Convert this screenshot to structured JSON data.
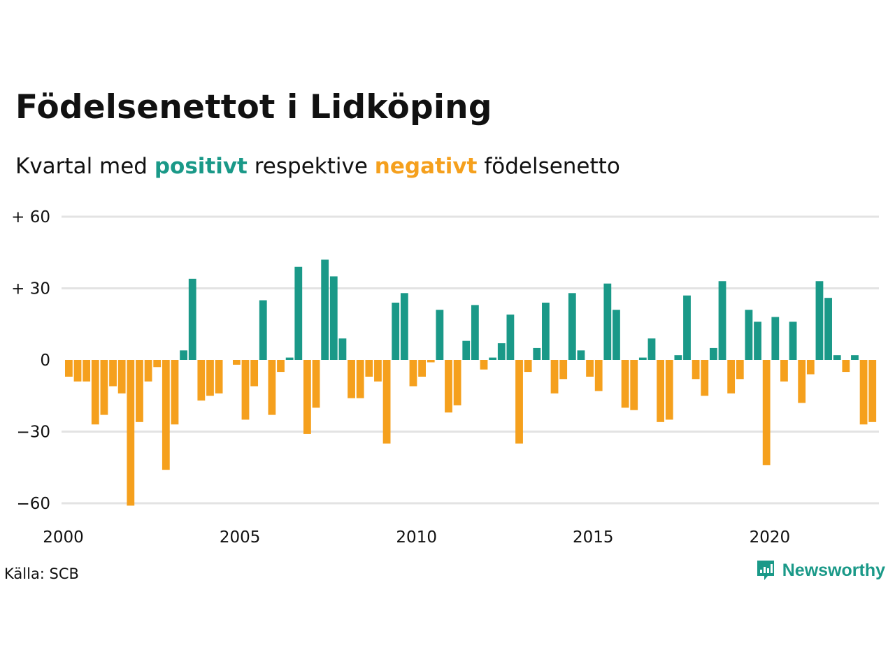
{
  "header": {
    "title": "Födelsenettot i Lidköping",
    "subtitle_prefix": "Kvartal med ",
    "subtitle_positive": "positivt",
    "subtitle_middle": " respektive ",
    "subtitle_negative": "negativt",
    "subtitle_suffix": " födelsenetto"
  },
  "footer": {
    "source": "Källa: SCB",
    "brand": "Newsworthy"
  },
  "colors": {
    "positive": "#1a9988",
    "negative": "#f5a01d",
    "grid": "#e3e3e3"
  },
  "chart_data": {
    "type": "bar",
    "x_start": "2000 Q1",
    "x_ticks": [
      "2000",
      "2005",
      "2010",
      "2015",
      "2020"
    ],
    "y_ticks": [
      {
        "value": 60,
        "label": "+ 60"
      },
      {
        "value": 30,
        "label": "+ 30"
      },
      {
        "value": 0,
        "label": "0"
      },
      {
        "value": -30,
        "label": "−30"
      },
      {
        "value": -60,
        "label": "−60"
      }
    ],
    "ylim": [
      -60,
      60
    ],
    "grid": true,
    "values": [
      -7,
      -9,
      -9,
      -27,
      -23,
      -11,
      -14,
      -61,
      -26,
      -9,
      -3,
      -46,
      -27,
      4,
      34,
      -17,
      -15,
      -14,
      0,
      -2,
      -25,
      -11,
      25,
      -23,
      -5,
      1,
      39,
      -31,
      -20,
      42,
      35,
      9,
      -16,
      -16,
      -7,
      -9,
      -35,
      24,
      28,
      -11,
      -7,
      -1,
      21,
      -22,
      -19,
      8,
      23,
      -4,
      1,
      7,
      19,
      -35,
      -5,
      5,
      24,
      -14,
      -8,
      28,
      4,
      -7,
      -13,
      32,
      21,
      -20,
      -21,
      1,
      9,
      -26,
      -25,
      2,
      27,
      -8,
      -15,
      5,
      33,
      -14,
      -8,
      21,
      16,
      -44,
      18,
      -9,
      16,
      -18,
      -6,
      33,
      26,
      2,
      -5,
      2,
      -27,
      -26
    ]
  }
}
